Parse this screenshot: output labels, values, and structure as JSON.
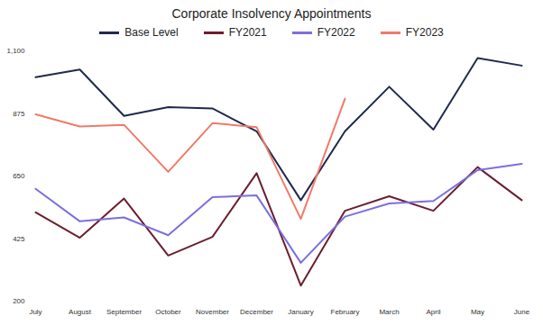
{
  "chart_data": {
    "type": "line",
    "title": "Corporate Insolvency Appointments",
    "categories": [
      "July",
      "August",
      "September",
      "October",
      "November",
      "December",
      "January",
      "February",
      "March",
      "April",
      "May",
      "June"
    ],
    "series": [
      {
        "name": "Base Level",
        "color": "#1f2a4d",
        "values": [
          1005,
          1033,
          866,
          898,
          893,
          811,
          563,
          811,
          971,
          817,
          1074,
          1047
        ]
      },
      {
        "name": "FY2021",
        "color": "#6b1e2e",
        "values": [
          519,
          428,
          569,
          364,
          431,
          660,
          256,
          525,
          577,
          525,
          682,
          563
        ]
      },
      {
        "name": "FY2022",
        "color": "#7b6fe0",
        "values": [
          604,
          487,
          501,
          437,
          574,
          580,
          338,
          504,
          551,
          560,
          671,
          694
        ]
      },
      {
        "name": "FY2023",
        "color": "#f07a6a",
        "values": [
          872,
          828,
          834,
          665,
          840,
          826,
          496,
          928,
          null,
          null,
          null,
          null
        ]
      }
    ],
    "ylim": [
      200,
      1100
    ],
    "yticks": [
      200,
      425,
      650,
      875,
      {
        "value": 1100,
        "label": "1,100"
      }
    ],
    "grid": false,
    "legend": "top"
  }
}
